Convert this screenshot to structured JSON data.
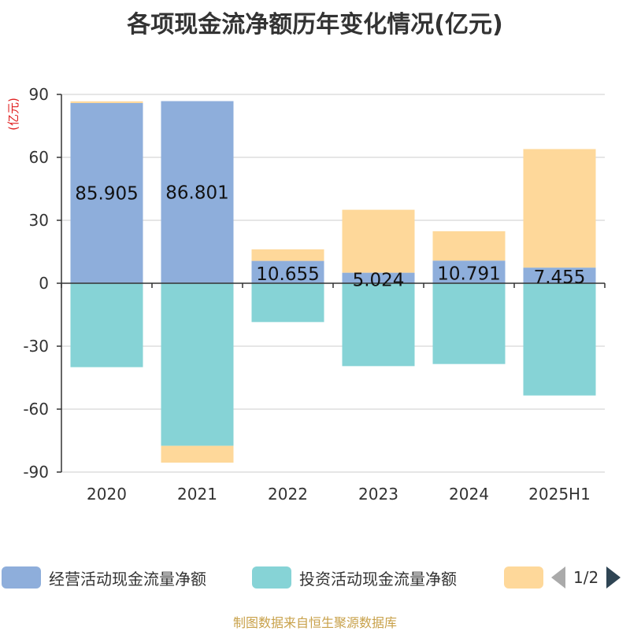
{
  "title": "各项现金流净额历年变化情况(亿元)",
  "source_note": "制图数据来自恒生聚源数据库",
  "colors": {
    "operating": "#8eaedb",
    "investing": "#86d3d6",
    "financing": "#fed89a"
  },
  "legend": {
    "items": [
      {
        "label": "经营活动现金流量净额",
        "color": "#8eaedb"
      },
      {
        "label": "投资活动现金流量净额",
        "color": "#86d3d6"
      },
      {
        "label": "",
        "color": "#fed89a"
      }
    ],
    "page": "1/2"
  },
  "chart_data": {
    "type": "bar",
    "stacked": true,
    "categories": [
      "2020",
      "2021",
      "2022",
      "2023",
      "2024",
      "2025H1"
    ],
    "ylabel": "(亿元)",
    "ylim": [
      -90,
      90
    ],
    "yticks": [
      90,
      60,
      30,
      0,
      -30,
      -60,
      -90
    ],
    "grid": true,
    "series": [
      {
        "name": "经营活动现金流量净额",
        "values": [
          85.905,
          86.801,
          10.655,
          5.024,
          10.791,
          7.455
        ],
        "labeled": true
      },
      {
        "name": "投资活动现金流量净额",
        "values": [
          -40,
          -77.5,
          -18.5,
          -39.5,
          -38.5,
          -53.5
        ]
      },
      {
        "values": [
          0.8,
          -8,
          5.5,
          30,
          14,
          56.5
        ]
      }
    ],
    "data_labels": [
      "85.905",
      "86.801",
      "10.655",
      "5.024",
      "10.791",
      "7.455"
    ]
  }
}
